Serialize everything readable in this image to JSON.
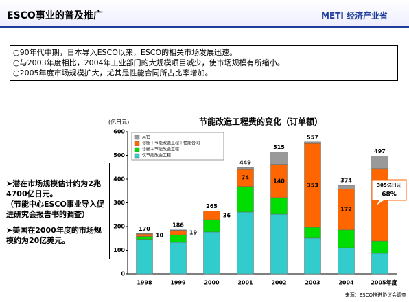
{
  "header": {
    "title": "ESCO事业的普及推广",
    "logo": "METI 经济产业省"
  },
  "bullets": [
    "○90年代中期，日本导入ESCO以来，ESCO的相关市场发展迅速。",
    "○与2003年度相比，2004年工业部门的大规模项目减少，使市场规模有所缩小。",
    "○2005年度市场规模扩大，尤其是性能合同所占比率增加。"
  ],
  "side_notes": [
    "➤潜在市场规模估计约为2兆4700亿日元。",
    "（节能中心ESCO事业导入促进研究会报告书的调查）",
    "➤美国在2000年度的市场规模约为20亿美元。"
  ],
  "chart_data": {
    "type": "stacked_bar",
    "title": "节能改造工程费的变化（订单额）",
    "y_label": "(亿日元)",
    "categories": [
      "1998",
      "1999",
      "2000",
      "2001",
      "2002",
      "2003",
      "2004",
      "2005年度"
    ],
    "series": [
      {
        "name": "仅节能改造工程",
        "color": "#33cccc",
        "values": [
          146,
          133,
          177,
          261,
          252,
          151,
          110,
          87
        ]
      },
      {
        "name": "诊断＋节能改造工程",
        "color": "#00dd00",
        "values": [
          12,
          32,
          52,
          108,
          70,
          46,
          76,
          52
        ]
      },
      {
        "name": "诊断＋节能改造工程＋性能合同",
        "color": "#ff6600",
        "values": [
          10,
          19,
          36,
          74,
          140,
          353,
          172,
          305
        ],
        "value_labels": [
          "10",
          "19",
          "36",
          "74",
          "140",
          "353",
          "172",
          "305亿日元"
        ]
      },
      {
        "name": "其它",
        "color": "#999999",
        "values": [
          2,
          2,
          0,
          6,
          53,
          7,
          16,
          53
        ]
      }
    ],
    "totals": [
      170,
      186,
      265,
      449,
      515,
      557,
      374,
      497
    ],
    "annotation": "68%",
    "ylim": [
      0,
      600
    ],
    "yticks": [
      0,
      100,
      200,
      300,
      400,
      500,
      600
    ],
    "grid": false,
    "source": "来源：ESCO推进协议会调查"
  }
}
